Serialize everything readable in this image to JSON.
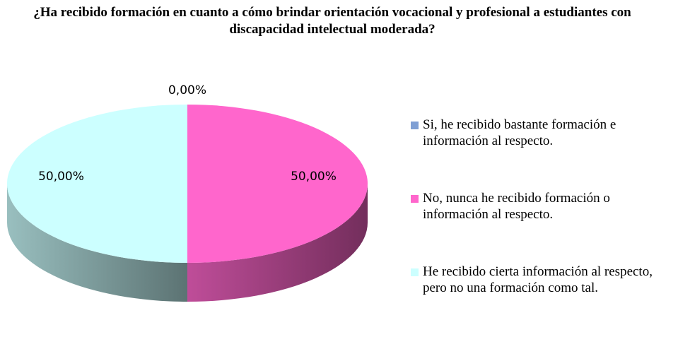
{
  "chart_data": {
    "type": "pie",
    "title": "¿Ha recibido formación en cuanto a cómo brindar orientación vocacional y profesional a estudiantes con discapacidad intelectual moderada?",
    "categories": [
      "Si, he recibido bastante formación e información al respecto.",
      "No, nunca he recibido formación o información al respecto.",
      "He recibido cierta información al respecto, pero no una formación como tal."
    ],
    "values": [
      0,
      50,
      50
    ],
    "value_labels": [
      "0,00%",
      "50,00%",
      "50,00%"
    ],
    "colors": [
      "#7f9fd4",
      "#ff66cc",
      "#ccffff"
    ],
    "legend": "right"
  }
}
